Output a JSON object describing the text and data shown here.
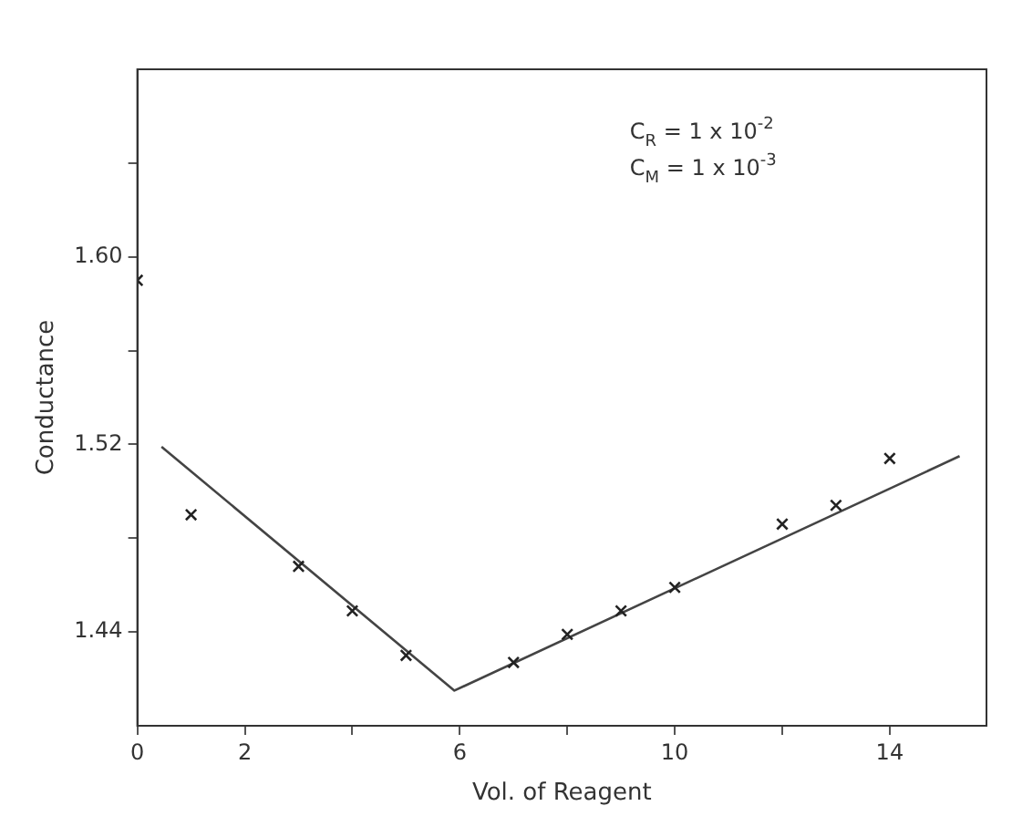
{
  "chart_data": {
    "type": "scatter",
    "xlabel": "Vol. of Reagent",
    "ylabel": "Conductance",
    "marker": "cross",
    "annotations": [
      "C$_{R}$ = 1 x 10$^{-2}$",
      "C$_{M}$ = 1 x 10$^{-3}$"
    ],
    "xlim": [
      0,
      15.8
    ],
    "ylim": [
      1.4,
      1.68
    ],
    "xticks": [
      0,
      2,
      {
        "value": 4,
        "label": null
      },
      6,
      {
        "value": 8,
        "label": null
      },
      10,
      {
        "value": 12,
        "label": null
      },
      14
    ],
    "yticks": [
      1.44,
      {
        "value": 1.48,
        "label": null
      },
      1.52,
      {
        "value": 1.56,
        "label": null
      },
      {
        "value": 1.6,
        "label": "1.60"
      },
      {
        "value": 1.64,
        "label": null
      }
    ],
    "series": [
      {
        "type": "scatter",
        "color": "#222222",
        "x": [
          0,
          1,
          3,
          4,
          5,
          7,
          8,
          9,
          10,
          12,
          13,
          14
        ],
        "values": [
          1.59,
          1.49,
          1.468,
          1.449,
          1.43,
          1.427,
          1.439,
          1.449,
          1.459,
          1.486,
          1.494,
          1.514
        ]
      },
      {
        "type": "line",
        "marker": "none",
        "color": "#444444",
        "x": [
          0.45,
          5.9,
          15.3
        ],
        "values": [
          1.519,
          1.415,
          1.515
        ]
      }
    ]
  }
}
